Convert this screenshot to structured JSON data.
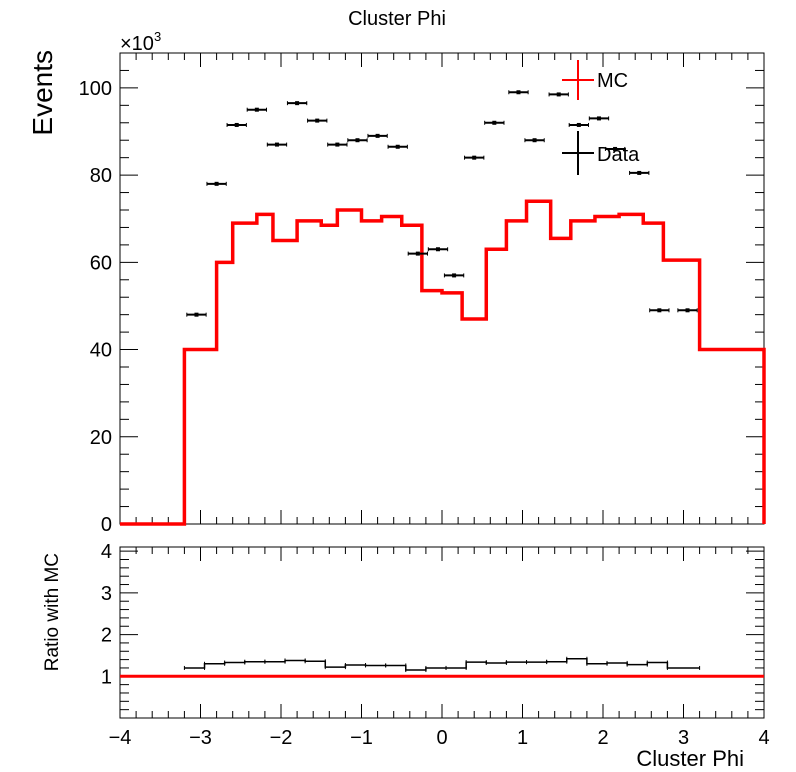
{
  "chart_data": [
    {
      "type": "histogram",
      "title": "Cluster Phi",
      "ylabel": "Events",
      "y_multiplier": "×10",
      "y_multiplier_exp": "3",
      "xlim": [
        -4,
        4
      ],
      "ylim": [
        0,
        108
      ],
      "x_ticks": [
        -4,
        -3,
        -2,
        -1,
        0,
        1,
        2,
        3,
        4
      ],
      "x_tick_labels": [
        "−4",
        "−3",
        "−2",
        "−1",
        "0",
        "1",
        "2",
        "3",
        "4"
      ],
      "y_ticks": [
        0,
        20,
        40,
        60,
        80,
        100
      ],
      "y_tick_labels": [
        "0",
        "20",
        "40",
        "60",
        "80",
        "100"
      ],
      "legend": {
        "position": "top-right",
        "entries": [
          "MC",
          "Data"
        ]
      },
      "series": [
        {
          "name": "MC",
          "style": "step",
          "color": "#ff0000",
          "bin_edges": [
            -4.0,
            -3.2,
            -2.8,
            -2.6,
            -2.3,
            -2.1,
            -1.8,
            -1.5,
            -1.3,
            -1.0,
            -0.75,
            -0.5,
            -0.25,
            0.0,
            0.25,
            0.55,
            0.8,
            1.05,
            1.35,
            1.6,
            1.9,
            2.2,
            2.5,
            2.75,
            3.2,
            4.0
          ],
          "values": [
            0,
            40,
            60,
            69,
            71,
            65,
            69.5,
            68.5,
            72,
            69.5,
            70.5,
            68.5,
            53.5,
            53,
            47,
            63,
            69.5,
            74,
            65.5,
            69.5,
            70.5,
            71,
            69,
            60.5,
            40,
            0
          ]
        },
        {
          "name": "Data",
          "style": "points",
          "color": "#000000",
          "x": [
            -3.05,
            -2.8,
            -2.55,
            -2.3,
            -2.05,
            -1.8,
            -1.55,
            -1.3,
            -1.05,
            -0.8,
            -0.55,
            -0.3,
            -0.05,
            0.15,
            0.4,
            0.65,
            0.95,
            1.15,
            1.45,
            1.7,
            1.95,
            2.15,
            2.45,
            2.7,
            3.05
          ],
          "values": [
            48,
            78,
            91.5,
            95,
            87,
            96.5,
            92.5,
            87,
            88,
            89,
            86.5,
            62,
            63,
            57,
            84,
            92,
            99,
            88,
            98.5,
            91.5,
            93,
            86,
            80.5,
            49,
            49
          ],
          "x_err": 0.12
        }
      ]
    },
    {
      "type": "line",
      "ylabel": "Ratio with MC",
      "xlabel": "Cluster Phi",
      "xlim": [
        -4,
        4
      ],
      "ylim": [
        0,
        4.1
      ],
      "x_ticks": [
        -4,
        -3,
        -2,
        -1,
        0,
        1,
        2,
        3,
        4
      ],
      "x_tick_labels": [
        "−4",
        "−3",
        "−2",
        "−1",
        "0",
        "1",
        "2",
        "3",
        "4"
      ],
      "y_ticks": [
        1,
        2,
        3,
        4
      ],
      "y_tick_labels": [
        "1",
        "2",
        "3",
        "4"
      ],
      "reference_line": {
        "y": 1,
        "color": "#ff0000"
      },
      "series": [
        {
          "name": "Ratio",
          "style": "step",
          "color": "#000000",
          "bin_edges": [
            -3.2,
            -2.95,
            -2.7,
            -2.45,
            -2.2,
            -1.95,
            -1.7,
            -1.45,
            -1.2,
            -0.95,
            -0.7,
            -0.45,
            -0.2,
            0.05,
            0.3,
            0.55,
            0.8,
            1.05,
            1.3,
            1.55,
            1.8,
            2.05,
            2.3,
            2.55,
            2.8,
            3.2
          ],
          "values": [
            1.2,
            1.3,
            1.33,
            1.35,
            1.35,
            1.38,
            1.36,
            1.22,
            1.27,
            1.26,
            1.26,
            1.15,
            1.2,
            1.2,
            1.34,
            1.32,
            1.34,
            1.34,
            1.35,
            1.42,
            1.3,
            1.32,
            1.28,
            1.33,
            1.2
          ]
        }
      ]
    }
  ]
}
